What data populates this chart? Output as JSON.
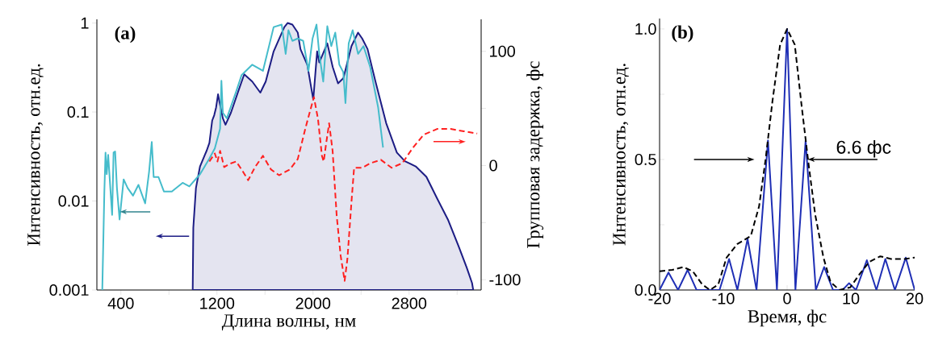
{
  "chart_data": [
    {
      "type": "line",
      "annotations": [
        "(a)"
      ],
      "xlabel": "Длина волны, нм",
      "ylabel": "Интенсивность, отн.ед.",
      "y2label": "Групповая задержка, фс",
      "xlim": [
        200,
        3400
      ],
      "xticks": [
        400,
        {
          "value": 800,
          "label": null
        },
        1200,
        {
          "value": 1600,
          "label": null
        },
        2000,
        {
          "value": 2400,
          "label": null
        },
        2800,
        {
          "value": 3200,
          "label": null
        }
      ],
      "ylim": [
        0.001,
        1.1
      ],
      "yticks": [
        0.001,
        0.01,
        0.1,
        1
      ],
      "log": "y",
      "y2lim": [
        -109,
        128
      ],
      "y2ticks": [
        -100,
        {
          "value": -50,
          "label": null
        },
        0,
        {
          "value": 50,
          "label": null
        },
        100
      ],
      "series": [
        {
          "type": "area",
          "color": "#1c1c84",
          "x": [
            998,
            1003,
            1025,
            1059,
            1115,
            1137,
            1160,
            1177,
            1193,
            1209,
            1222,
            1249,
            1271,
            1316,
            1383,
            1427,
            1494,
            1561,
            1606,
            1672,
            1761,
            1788,
            1828,
            1873,
            1895,
            1952,
            2002,
            2034,
            2052,
            2119,
            2164,
            2208,
            2253,
            2320,
            2375,
            2409,
            2454,
            2520,
            2609,
            2698,
            2765,
            2855,
            2944,
            3033,
            3123,
            3212,
            3279,
            3324,
            3334
          ],
          "values": [
            0.001,
            0.005,
            0.014,
            0.0245,
            0.037,
            0.045,
            0.08,
            0.092,
            0.113,
            0.158,
            0.128,
            0.085,
            0.072,
            0.098,
            0.18,
            0.265,
            0.22,
            0.165,
            0.22,
            0.48,
            0.9,
            1.0,
            0.96,
            0.78,
            0.51,
            0.34,
            0.138,
            0.48,
            0.36,
            0.59,
            0.32,
            0.21,
            0.24,
            0.55,
            0.78,
            0.67,
            0.51,
            0.22,
            0.075,
            0.035,
            0.028,
            0.0245,
            0.0187,
            0.0107,
            0.0062,
            0.0031,
            0.0018,
            0.0012,
            0.001
          ]
        },
        {
          "type": "line",
          "color": "#45bccb",
          "x": [
            245,
            262,
            272,
            282,
            294,
            312,
            327,
            339,
            352,
            367,
            389,
            423,
            456,
            501,
            546,
            602,
            635,
            657,
            673,
            713,
            758,
            824,
            914,
            970,
            1059,
            1137,
            1182,
            1226,
            1237,
            1249,
            1282,
            1360,
            1405,
            1494,
            1583,
            1672,
            1739,
            1772,
            1795,
            1828,
            1873,
            1918,
            1962,
            1996,
            2029,
            2052,
            2085,
            2119,
            2152,
            2185,
            2219,
            2252,
            2270,
            2297,
            2330,
            2375,
            2420,
            2476,
            2542,
            2583
          ],
          "values": [
            0.001,
            0.0123,
            0.035,
            0.02,
            0.033,
            0.014,
            0.007,
            0.035,
            0.036,
            0.014,
            0.0062,
            0.0175,
            0.014,
            0.0115,
            0.0152,
            0.0094,
            0.0215,
            0.046,
            0.0186,
            0.0186,
            0.0128,
            0.0128,
            0.016,
            0.0146,
            0.02,
            0.03,
            0.039,
            0.065,
            0.224,
            0.098,
            0.085,
            0.17,
            0.26,
            0.34,
            0.29,
            0.9,
            0.96,
            0.45,
            0.83,
            0.63,
            0.67,
            0.63,
            0.29,
            0.67,
            0.96,
            0.45,
            0.22,
            0.92,
            0.55,
            0.78,
            0.34,
            0.28,
            0.126,
            0.59,
            0.83,
            0.45,
            0.55,
            0.32,
            0.113,
            0.04
          ]
        },
        {
          "type": "line",
          "color": "#ff2020",
          "axis": "y2",
          "line_style": "dashed",
          "x": [
            1137,
            1182,
            1204,
            1226,
            1260,
            1304,
            1360,
            1405,
            1460,
            1517,
            1583,
            1650,
            1717,
            1806,
            1873,
            1940,
            2007,
            2041,
            2074,
            2089,
            2107,
            2134,
            2163,
            2197,
            2230,
            2263,
            2286,
            2320,
            2342,
            2409,
            2476,
            2565,
            2654,
            2743,
            2832,
            2922,
            3033,
            3145,
            3256,
            3367
          ],
          "values": [
            3.5,
            10.6,
            3.5,
            12.8,
            -1.4,
            1.4,
            3.5,
            -3.5,
            -12.8,
            -1.4,
            8.5,
            -3.5,
            -8.5,
            -3.5,
            5.7,
            34,
            60,
            41,
            8.5,
            3.5,
            17.7,
            37,
            12.8,
            -44,
            -79,
            -101,
            -82,
            -32,
            -2,
            -2,
            2,
            5,
            -2,
            2,
            15.6,
            27,
            32,
            32,
            30,
            28
          ]
        }
      ]
    },
    {
      "type": "line",
      "annotations": [
        "(b)",
        "6.6 фс"
      ],
      "xlabel": "Время, фс",
      "ylabel": "Интенсивность, отн.ед.",
      "xlim": [
        -20,
        20
      ],
      "xticks": [
        -20,
        -10,
        0,
        10,
        20
      ],
      "ylim": [
        0,
        1.04
      ],
      "yticks": [
        {
          "value": 0,
          "label": "0.0"
        },
        {
          "value": 0.25,
          "label": null
        },
        {
          "value": 0.5,
          "label": "0.5"
        },
        {
          "value": 0.75,
          "label": null
        },
        {
          "value": 1,
          "label": "1.0"
        }
      ],
      "series": [
        {
          "color": "#1f2fb5",
          "x": [
            -20,
            -18.6,
            -17.1,
            -15.6,
            -14.2,
            -10.6,
            -9.1,
            -7.8,
            -6.2,
            -4.8,
            -3.0,
            -1.6,
            0,
            1.3,
            2.9,
            4.5,
            5.8,
            7.2,
            8.7,
            9.7,
            10.8,
            12.5,
            14.0,
            15.4,
            16.9,
            18.6,
            20
          ],
          "values": [
            0,
            0.067,
            0,
            0.077,
            0,
            0,
            0.119,
            0,
            0.196,
            0,
            0.573,
            0,
            1.0,
            0,
            0.573,
            0,
            0.088,
            0,
            0,
            0.026,
            0,
            0.114,
            0,
            0.119,
            0,
            0.124,
            0
          ]
        },
        {
          "color": "#000000",
          "line_style": "dashed",
          "x": [
            -20,
            -18.0,
            -16.3,
            -14.8,
            -13.3,
            -12.1,
            -10.8,
            -9.5,
            -7.8,
            -5.7,
            -4.4,
            -3.4,
            -2.3,
            -1.1,
            0,
            1.2,
            2.3,
            3.4,
            4.4,
            5.7,
            6.8,
            8.2,
            9.9,
            11.4,
            12.9,
            14.6,
            16.3,
            18.4,
            20
          ],
          "values": [
            0.072,
            0.077,
            0.088,
            0.072,
            0.021,
            0,
            0.021,
            0.124,
            0.176,
            0.207,
            0.32,
            0.496,
            0.723,
            0.94,
            1.0,
            0.94,
            0.7,
            0.475,
            0.289,
            0.124,
            0.031,
            0,
            0.01,
            0.062,
            0.108,
            0.129,
            0.119,
            0.119,
            0.124
          ]
        }
      ]
    }
  ]
}
